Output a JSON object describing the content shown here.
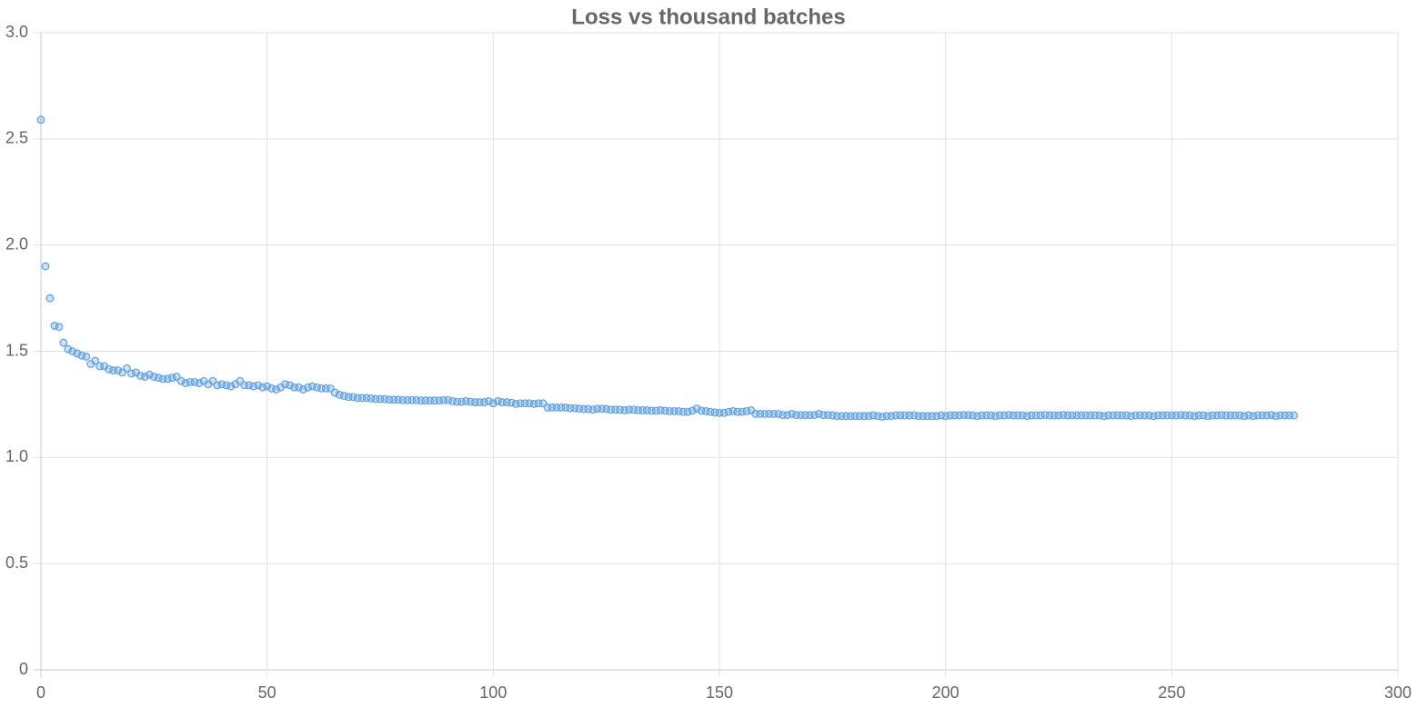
{
  "chart_data": {
    "type": "scatter",
    "title": "Loss vs thousand batches",
    "color": "#5b9ee6",
    "grid": true,
    "xlim": [
      0,
      300
    ],
    "xticks": [
      0,
      50,
      100,
      150,
      200,
      250,
      300
    ],
    "ylim": [
      0,
      3
    ],
    "yticks": [
      0,
      0.5,
      {
        "value": 1,
        "label": "1.0"
      },
      1.5,
      {
        "value": 2,
        "label": "2.0"
      },
      2.5,
      {
        "value": 3,
        "label": "3.0"
      }
    ],
    "x": [
      0,
      1,
      2,
      3,
      4,
      5,
      6,
      7,
      8,
      9,
      10,
      11,
      12,
      13,
      14,
      15,
      16,
      17,
      18,
      19,
      20,
      21,
      22,
      23,
      24,
      25,
      26,
      27,
      28,
      29,
      30,
      31,
      32,
      33,
      34,
      35,
      36,
      37,
      38,
      39,
      40,
      41,
      42,
      43,
      44,
      45,
      46,
      47,
      48,
      49,
      50,
      51,
      52,
      53,
      54,
      55,
      56,
      57,
      58,
      59,
      60,
      61,
      62,
      63,
      64,
      65,
      66,
      67,
      68,
      69,
      70,
      71,
      72,
      73,
      74,
      75,
      76,
      77,
      78,
      79,
      80,
      81,
      82,
      83,
      84,
      85,
      86,
      87,
      88,
      89,
      90,
      91,
      92,
      93,
      94,
      95,
      96,
      97,
      98,
      99,
      100,
      101,
      102,
      103,
      104,
      105,
      106,
      107,
      108,
      109,
      110,
      111,
      112,
      113,
      114,
      115,
      116,
      117,
      118,
      119,
      120,
      121,
      122,
      123,
      124,
      125,
      126,
      127,
      128,
      129,
      130,
      131,
      132,
      133,
      134,
      135,
      136,
      137,
      138,
      139,
      140,
      141,
      142,
      143,
      144,
      145,
      146,
      147,
      148,
      149,
      150,
      151,
      152,
      153,
      154,
      155,
      156,
      157,
      158,
      159,
      160,
      161,
      162,
      163,
      164,
      165,
      166,
      167,
      168,
      169,
      170,
      171,
      172,
      173,
      174,
      175,
      176,
      177,
      178,
      179,
      180,
      181,
      182,
      183,
      184,
      185,
      186,
      187,
      188,
      189,
      190,
      191,
      192,
      193,
      194,
      195,
      196,
      197,
      198,
      199,
      200,
      201,
      202,
      203,
      204,
      205,
      206,
      207,
      208,
      209,
      210,
      211,
      212,
      213,
      214,
      215,
      216,
      217,
      218,
      219,
      220,
      221,
      222,
      223,
      224,
      225,
      226,
      227,
      228,
      229,
      230,
      231,
      232,
      233,
      234,
      235,
      236,
      237,
      238,
      239,
      240,
      241,
      242,
      243,
      244,
      245,
      246,
      247,
      248,
      249,
      250,
      251,
      252,
      253,
      254,
      255,
      256,
      257,
      258,
      259,
      260,
      261,
      262,
      263,
      264,
      265,
      266,
      267,
      268,
      269,
      270,
      271,
      272,
      273,
      274,
      275,
      276,
      277
    ],
    "values": [
      2.59,
      1.9,
      1.75,
      1.62,
      1.615,
      1.54,
      1.51,
      1.5,
      1.49,
      1.48,
      1.475,
      1.44,
      1.455,
      1.43,
      1.43,
      1.415,
      1.41,
      1.41,
      1.4,
      1.42,
      1.395,
      1.4,
      1.385,
      1.38,
      1.39,
      1.38,
      1.375,
      1.37,
      1.37,
      1.375,
      1.38,
      1.36,
      1.35,
      1.355,
      1.355,
      1.35,
      1.36,
      1.345,
      1.36,
      1.34,
      1.345,
      1.34,
      1.335,
      1.345,
      1.36,
      1.34,
      1.34,
      1.335,
      1.34,
      1.33,
      1.335,
      1.325,
      1.32,
      1.33,
      1.345,
      1.34,
      1.33,
      1.33,
      1.32,
      1.33,
      1.335,
      1.33,
      1.325,
      1.325,
      1.325,
      1.305,
      1.295,
      1.29,
      1.285,
      1.285,
      1.28,
      1.28,
      1.28,
      1.278,
      1.275,
      1.275,
      1.275,
      1.272,
      1.272,
      1.272,
      1.27,
      1.27,
      1.27,
      1.27,
      1.268,
      1.268,
      1.268,
      1.268,
      1.268,
      1.27,
      1.27,
      1.265,
      1.262,
      1.262,
      1.265,
      1.262,
      1.26,
      1.26,
      1.26,
      1.265,
      1.255,
      1.265,
      1.26,
      1.26,
      1.258,
      1.252,
      1.255,
      1.255,
      1.255,
      1.252,
      1.255,
      1.255,
      1.235,
      1.235,
      1.235,
      1.235,
      1.235,
      1.232,
      1.232,
      1.23,
      1.228,
      1.228,
      1.225,
      1.23,
      1.23,
      1.228,
      1.225,
      1.225,
      1.225,
      1.222,
      1.225,
      1.225,
      1.222,
      1.222,
      1.222,
      1.22,
      1.22,
      1.222,
      1.22,
      1.218,
      1.218,
      1.218,
      1.215,
      1.215,
      1.22,
      1.23,
      1.22,
      1.218,
      1.215,
      1.212,
      1.21,
      1.21,
      1.215,
      1.218,
      1.215,
      1.215,
      1.218,
      1.222,
      1.205,
      1.205,
      1.205,
      1.205,
      1.205,
      1.205,
      1.2,
      1.2,
      1.205,
      1.2,
      1.2,
      1.2,
      1.2,
      1.2,
      1.205,
      1.2,
      1.2,
      1.198,
      1.195,
      1.195,
      1.195,
      1.195,
      1.195,
      1.195,
      1.195,
      1.195,
      1.198,
      1.195,
      1.192,
      1.195,
      1.195,
      1.198,
      1.198,
      1.198,
      1.198,
      1.198,
      1.195,
      1.195,
      1.195,
      1.195,
      1.195,
      1.198,
      1.195,
      1.198,
      1.198,
      1.198,
      1.2,
      1.2,
      1.198,
      1.195,
      1.198,
      1.198,
      1.198,
      1.195,
      1.198,
      1.198,
      1.2,
      1.198,
      1.198,
      1.198,
      1.195,
      1.198,
      1.198,
      1.198,
      1.2,
      1.198,
      1.198,
      1.198,
      1.2,
      1.198,
      1.198,
      1.198,
      1.198,
      1.198,
      1.198,
      1.198,
      1.198,
      1.195,
      1.198,
      1.198,
      1.198,
      1.198,
      1.198,
      1.195,
      1.198,
      1.198,
      1.198,
      1.198,
      1.195,
      1.198,
      1.198,
      1.198,
      1.198,
      1.198,
      1.2,
      1.198,
      1.198,
      1.195,
      1.198,
      1.198,
      1.195,
      1.198,
      1.198,
      1.2,
      1.198,
      1.198,
      1.198,
      1.198,
      1.195,
      1.198,
      1.195,
      1.198,
      1.198,
      1.198,
      1.2,
      1.195,
      1.198,
      1.198,
      1.198,
      1.198
    ]
  }
}
